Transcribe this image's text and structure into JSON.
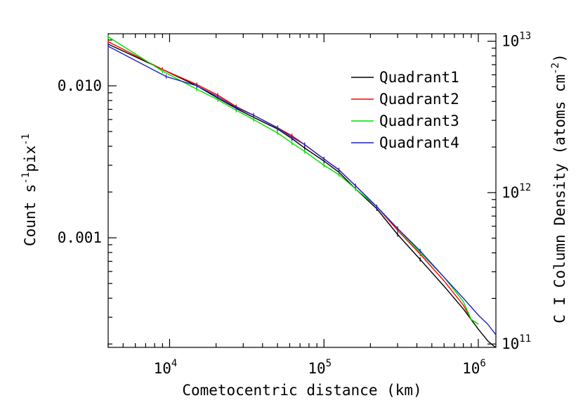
{
  "chart_data": {
    "type": "line",
    "xlabel": "Cometocentric distance (km)",
    "ylabel": "Count s",
    "ylabel_exp1": "-1",
    "ylabel_mid": "pix",
    "ylabel_exp2": "-1",
    "y2label": "C I Column Density (atoms cm",
    "y2label_exp": "-2",
    "y2label_close": ")",
    "x_scale": "log",
    "y_scale": "log",
    "xlim": [
      4000,
      1300000
    ],
    "ylim": [
      0.00019,
      0.022
    ],
    "y2lim": [
      95000000000,
      11200000000000
    ],
    "x_ticks": [
      {
        "base": "10",
        "exp": "4",
        "value": 10000
      },
      {
        "base": "10",
        "exp": "5",
        "value": 100000
      },
      {
        "base": "10",
        "exp": "6",
        "value": 1000000
      }
    ],
    "y_ticks": [
      {
        "label": "0.010",
        "value": 0.01
      },
      {
        "label": "0.001",
        "value": 0.001
      }
    ],
    "y2_ticks": [
      {
        "base": "10",
        "exp": "13",
        "value": 10000000000000
      },
      {
        "base": "10",
        "exp": "12",
        "value": 1000000000000
      },
      {
        "base": "10",
        "exp": "11",
        "value": 100000000000
      }
    ],
    "legend_position": "top-right",
    "series": [
      {
        "name": "Quadrant1",
        "color": "#000000",
        "x": [
          4000,
          9000,
          15000,
          20500,
          27000,
          35000,
          50000,
          62000,
          75000,
          100000,
          125000,
          160000,
          220000,
          300000,
          420000,
          600000,
          800000,
          1000000,
          1150000,
          1250000,
          1300000
        ],
        "y": [
          0.0188,
          0.0128,
          0.01,
          0.0083,
          0.0071,
          0.0062,
          0.0052,
          0.0045,
          0.0039,
          0.0032,
          0.0027,
          0.0021,
          0.00155,
          0.00105,
          0.00072,
          0.00048,
          0.00034,
          0.00025,
          0.00021,
          0.000195,
          0.00019
        ]
      },
      {
        "name": "Quadrant2",
        "color": "#ff0000",
        "x": [
          4000,
          9000,
          15000,
          20500,
          27000,
          35000,
          50000,
          62000,
          75000,
          100000,
          125000,
          160000,
          220000,
          300000,
          420000,
          600000,
          800000,
          900000,
          1000000
        ],
        "y": [
          0.0195,
          0.0128,
          0.0102,
          0.0087,
          0.0073,
          0.0064,
          0.0053,
          0.0047,
          0.0041,
          0.0033,
          0.0028,
          0.0022,
          0.0016,
          0.00112,
          0.00078,
          0.00052,
          0.00036,
          0.00029,
          0.00027
        ]
      },
      {
        "name": "Quadrant3",
        "color": "#00e000",
        "x": [
          4000,
          9000,
          15000,
          20500,
          27000,
          35000,
          50000,
          62000,
          75000,
          100000,
          125000,
          160000,
          220000,
          300000,
          420000,
          600000,
          800000,
          900000,
          1000000
        ],
        "y": [
          0.021,
          0.0125,
          0.0095,
          0.0081,
          0.0069,
          0.006,
          0.0049,
          0.0042,
          0.0037,
          0.003,
          0.0026,
          0.0021,
          0.0016,
          0.00115,
          0.0008,
          0.00055,
          0.00038,
          0.00029,
          0.00027
        ]
      },
      {
        "name": "Quadrant4",
        "color": "#2020c0",
        "x": [
          4000,
          9500,
          15000,
          20500,
          27000,
          35000,
          50000,
          62000,
          75000,
          100000,
          125000,
          160000,
          220000,
          300000,
          420000,
          600000,
          800000,
          1000000,
          1150000,
          1300000
        ],
        "y": [
          0.0182,
          0.0115,
          0.01,
          0.0085,
          0.0072,
          0.0064,
          0.0053,
          0.0046,
          0.0041,
          0.0033,
          0.0028,
          0.0022,
          0.0016,
          0.00115,
          0.00082,
          0.00055,
          0.0004,
          0.00031,
          0.00027,
          0.00023
        ]
      }
    ]
  }
}
